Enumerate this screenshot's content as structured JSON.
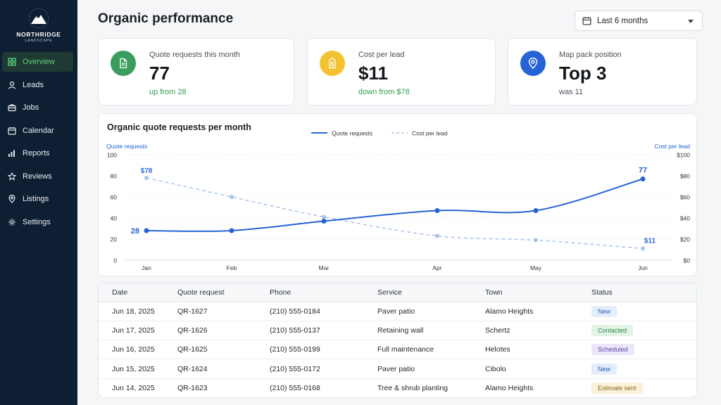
{
  "brand": {
    "name": "NORTHRIDGE",
    "sub": "LANDSCAPE"
  },
  "nav": [
    {
      "label": "Overview",
      "icon": "grid-icon",
      "active": true
    },
    {
      "label": "Leads",
      "icon": "user-icon"
    },
    {
      "label": "Jobs",
      "icon": "briefcase-icon"
    },
    {
      "label": "Calendar",
      "icon": "calendar-icon"
    },
    {
      "label": "Reports",
      "icon": "bar-chart-icon"
    },
    {
      "label": "Reviews",
      "icon": "star-icon"
    },
    {
      "label": "Listings",
      "icon": "map-pin-icon"
    },
    {
      "label": "Settings",
      "icon": "gear-icon"
    }
  ],
  "header": {
    "title": "Organic performance",
    "range": "Last 6 months"
  },
  "kpis": [
    {
      "label": "Quote requests this month",
      "value": "77",
      "sub": "up from 28",
      "icon": "document-icon",
      "color": "#3a9d5d"
    },
    {
      "label": "Cost per lead",
      "value": "$11",
      "sub": "down from $78",
      "icon": "dollar-tag-icon",
      "color": "#f2c230"
    },
    {
      "label": "Map pack position",
      "value": "Top 3",
      "sub": "was 11",
      "icon": "map-pin-icon",
      "color": "#2563d6"
    }
  ],
  "chart_data": {
    "type": "line",
    "title": "Organic quote requests per month",
    "categories": [
      "Jan",
      "Feb",
      "Mar",
      "Apr",
      "May",
      "Jun"
    ],
    "series": [
      {
        "name": "Quote requests",
        "axis": "left",
        "color": "#2563d6",
        "style": "solid",
        "values": [
          28,
          28,
          37,
          47,
          47,
          77
        ]
      },
      {
        "name": "Cost per lead",
        "axis": "right",
        "color": "#aac4ee",
        "style": "dashed",
        "values": [
          78,
          60,
          41,
          23,
          19,
          11
        ]
      }
    ],
    "ylabel_left": "Quote requests",
    "ylabel_right": "Cost per lead",
    "ylim_left": [
      0,
      100
    ],
    "ylim_right": [
      0,
      100
    ],
    "yticks_left": [
      "0",
      "20",
      "40",
      "60",
      "80",
      "100"
    ],
    "yticks_right": [
      "$0",
      "$20",
      "$40",
      "$60",
      "$80",
      "$100"
    ],
    "annotations": {
      "requests_start": "28",
      "requests_end": "77",
      "cost_start": "$78",
      "cost_end": "$11"
    },
    "legend": "top-center",
    "grid": true
  },
  "table": {
    "headers": [
      "Date",
      "Quote request",
      "Phone",
      "Service",
      "Town",
      "Status"
    ],
    "rows": [
      {
        "date": "Jun 18, 2025",
        "id": "QR-1627",
        "phone": "(210) 555-0184",
        "service": "Paver patio",
        "town": "Alamo Heights",
        "status": "New",
        "kind": "new"
      },
      {
        "date": "Jun 17, 2025",
        "id": "QR-1626",
        "phone": "(210) 555-0137",
        "service": "Retaining wall",
        "town": "Schertz",
        "status": "Contacted",
        "kind": "contacted"
      },
      {
        "date": "Jun 16, 2025",
        "id": "QR-1625",
        "phone": "(210) 555-0199",
        "service": "Full maintenance",
        "town": "Helotes",
        "status": "Scheduled",
        "kind": "scheduled"
      },
      {
        "date": "Jun 15, 2025",
        "id": "QR-1624",
        "phone": "(210) 555-0172",
        "service": "Paver patio",
        "town": "Cibolo",
        "status": "New",
        "kind": "new"
      },
      {
        "date": "Jun 14, 2025",
        "id": "QR-1623",
        "phone": "(210) 555-0168",
        "service": "Tree & shrub planting",
        "town": "Alamo Heights",
        "status": "Estimate sent",
        "kind": "estimate"
      }
    ]
  }
}
